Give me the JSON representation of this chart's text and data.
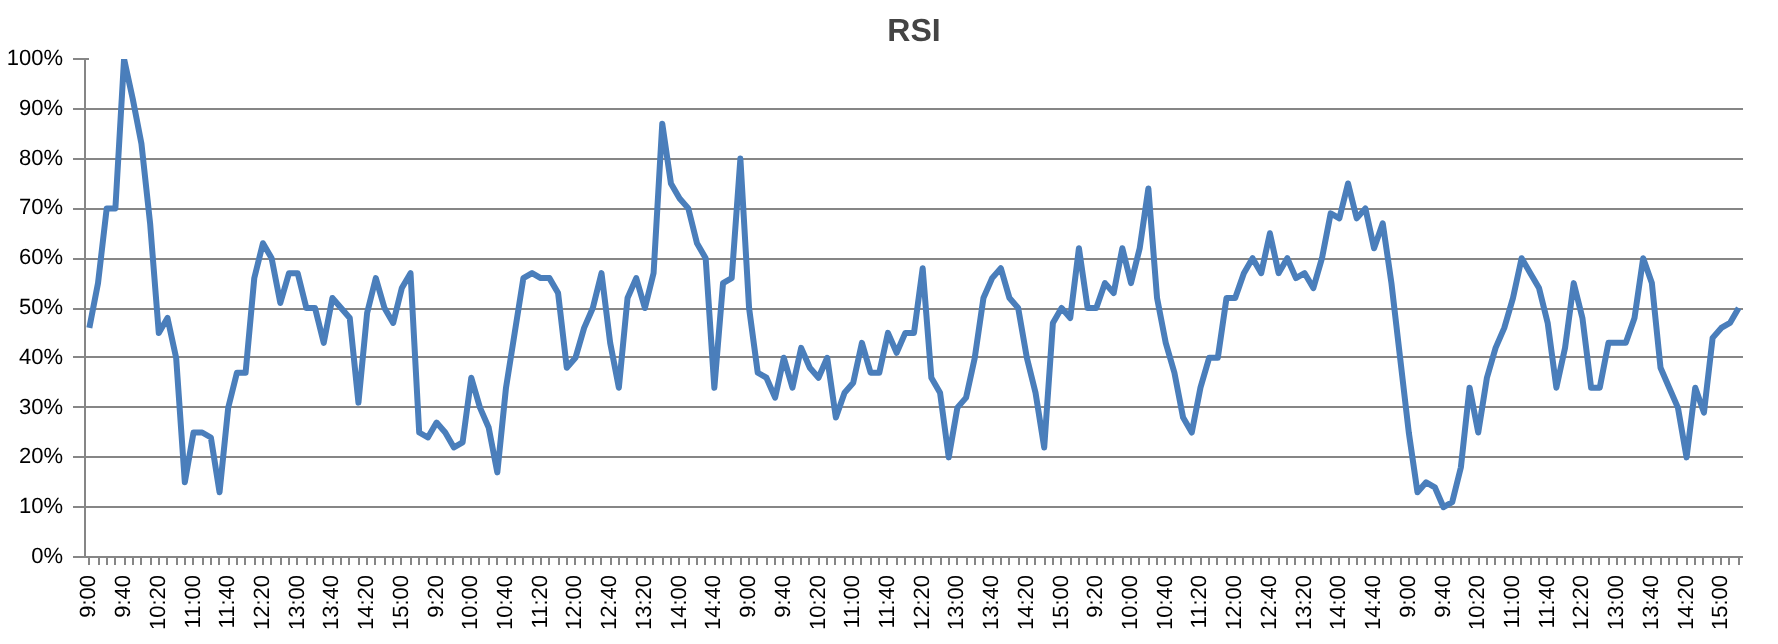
{
  "chart_data": {
    "type": "line",
    "title": "RSI",
    "categories": [
      "9:00",
      null,
      null,
      null,
      "9:40",
      null,
      null,
      null,
      "10:20",
      null,
      null,
      null,
      "11:00",
      null,
      null,
      null,
      "11:40",
      null,
      null,
      null,
      "12:20",
      null,
      null,
      null,
      "13:00",
      null,
      null,
      null,
      "13:40",
      null,
      null,
      null,
      "14:20",
      null,
      null,
      null,
      "15:00",
      null,
      null,
      null,
      "9:20",
      null,
      null,
      null,
      "10:00",
      null,
      null,
      null,
      "10:40",
      null,
      null,
      null,
      "11:20",
      null,
      null,
      null,
      "12:00",
      null,
      null,
      null,
      "12:40",
      null,
      null,
      null,
      "13:20",
      null,
      null,
      null,
      "14:00",
      null,
      null,
      null,
      "14:40",
      null,
      null,
      null,
      "9:00",
      null,
      null,
      null,
      "9:40",
      null,
      null,
      null,
      "10:20",
      null,
      null,
      null,
      "11:00",
      null,
      null,
      null,
      "11:40",
      null,
      null,
      null,
      "12:20",
      null,
      null,
      null,
      "13:00",
      null,
      null,
      null,
      "13:40",
      null,
      null,
      null,
      "14:20",
      null,
      null,
      null,
      "15:00",
      null,
      null,
      null,
      "9:20",
      null,
      null,
      null,
      "10:00",
      null,
      null,
      null,
      "10:40",
      null,
      null,
      null,
      "11:20",
      null,
      null,
      null,
      "12:00",
      null,
      null,
      null,
      "12:40",
      null,
      null,
      null,
      "13:20",
      null,
      null,
      null,
      "14:00",
      null,
      null,
      null,
      "14:40",
      null,
      null,
      null,
      "9:00",
      null,
      null,
      null,
      "9:40",
      null,
      null,
      null,
      "10:20",
      null,
      null,
      null,
      "11:00",
      null,
      null,
      null,
      "11:40",
      null,
      null,
      null,
      "12:20",
      null,
      null,
      null,
      "13:00",
      null,
      null,
      null,
      "13:40",
      null,
      null,
      null,
      "14:20",
      null,
      null,
      null,
      "15:00",
      null,
      null
    ],
    "series": [
      {
        "color": "#4a7ebb",
        "values": [
          46,
          55,
          70,
          70,
          100,
          92,
          83,
          67,
          45,
          48,
          40,
          15,
          25,
          25,
          24,
          13,
          30,
          37,
          37,
          56,
          63,
          60,
          51,
          57,
          57,
          50,
          50,
          43,
          52,
          50,
          48,
          31,
          49,
          56,
          50,
          47,
          54,
          57,
          25,
          24,
          27,
          25,
          22,
          23,
          36,
          30,
          26,
          17,
          34,
          45,
          56,
          57,
          56,
          56,
          53,
          38,
          40,
          46,
          50,
          57,
          43,
          34,
          52,
          56,
          50,
          57,
          87,
          75,
          72,
          70,
          63,
          60,
          34,
          55,
          56,
          80,
          50,
          37,
          36,
          32,
          40,
          34,
          42,
          38,
          36,
          40,
          28,
          33,
          35,
          43,
          37,
          37,
          45,
          41,
          45,
          45,
          58,
          36,
          33,
          20,
          30,
          32,
          40,
          52,
          56,
          58,
          52,
          50,
          40,
          33,
          22,
          47,
          50,
          48,
          62,
          50,
          50,
          55,
          53,
          62,
          55,
          62,
          74,
          52,
          43,
          37,
          28,
          25,
          34,
          40,
          40,
          52,
          52,
          57,
          60,
          57,
          65,
          57,
          60,
          56,
          57,
          54,
          60,
          69,
          68,
          75,
          68,
          70,
          62,
          67,
          55,
          40,
          25,
          13,
          15,
          14,
          10,
          11,
          18,
          34,
          25,
          36,
          42,
          46,
          52,
          60,
          57,
          54,
          47,
          34,
          42,
          55,
          48,
          34,
          34,
          43,
          43,
          43,
          48,
          60,
          55,
          38,
          34,
          30,
          20,
          34,
          29,
          44,
          46,
          47,
          50
        ]
      }
    ],
    "ylim": [
      0,
      100
    ],
    "yticks": [
      {
        "value": 0,
        "label": "0%"
      },
      {
        "value": 10,
        "label": "10%"
      },
      {
        "value": 20,
        "label": "20%"
      },
      {
        "value": 30,
        "label": "30%"
      },
      {
        "value": 40,
        "label": "40%"
      },
      {
        "value": 50,
        "label": "50%"
      },
      {
        "value": 60,
        "label": "60%"
      },
      {
        "value": 70,
        "label": "70%"
      },
      {
        "value": 80,
        "label": "80%"
      },
      {
        "value": 90,
        "label": "90%"
      },
      {
        "value": 100,
        "label": "100%"
      }
    ],
    "grid": "y",
    "line_style": "solid"
  }
}
